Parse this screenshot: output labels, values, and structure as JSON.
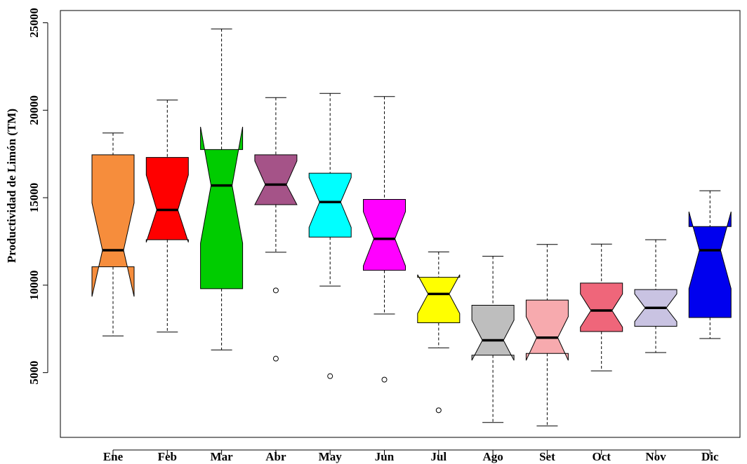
{
  "chart_data": {
    "type": "boxplot",
    "title": "",
    "xlabel": "",
    "ylabel": "Productividad de Limón (TM)",
    "ylim": [
      1300,
      25700
    ],
    "yticks": [
      5000,
      10000,
      15000,
      20000,
      25000
    ],
    "grid": false,
    "notched": true,
    "categories": [
      "Ene",
      "Feb",
      "Mar",
      "Abr",
      "May",
      "Jun",
      "Jul",
      "Ago",
      "Set",
      "Oct",
      "Nov",
      "Dic"
    ],
    "boxes": [
      {
        "name": "Ene",
        "color": "#F68D3C",
        "whisker_low": 7100,
        "q1": 11050,
        "median": 12000,
        "q3": 17450,
        "whisker_high": 18700,
        "notch_low": 9350,
        "notch_high": 14700,
        "outliers": []
      },
      {
        "name": "Feb",
        "color": "#FF0000",
        "whisker_low": 7320,
        "q1": 12600,
        "median": 14300,
        "q3": 17300,
        "whisker_high": 20580,
        "notch_low": 12450,
        "notch_high": 16300,
        "outliers": []
      },
      {
        "name": "Mar",
        "color": "#00CC00",
        "whisker_low": 6300,
        "q1": 9800,
        "median": 15700,
        "q3": 17750,
        "whisker_high": 24650,
        "notch_low": 12400,
        "notch_high": 19050,
        "outliers": []
      },
      {
        "name": "Abr",
        "color": "#A55388",
        "whisker_low": 11880,
        "q1": 14600,
        "median": 15750,
        "q3": 17450,
        "whisker_high": 20720,
        "notch_low": 14600,
        "notch_high": 17100,
        "outliers": [
          9700,
          5800
        ]
      },
      {
        "name": "May",
        "color": "#00FFFF",
        "whisker_low": 9950,
        "q1": 12750,
        "median": 14750,
        "q3": 16400,
        "whisker_high": 20960,
        "notch_low": 13300,
        "notch_high": 16150,
        "outliers": [
          4800
        ]
      },
      {
        "name": "Jun",
        "color": "#FF00FF",
        "whisker_low": 8350,
        "q1": 10850,
        "median": 12650,
        "q3": 14900,
        "whisker_high": 20780,
        "notch_low": 11100,
        "notch_high": 14200,
        "outliers": [
          4600
        ]
      },
      {
        "name": "Jul",
        "color": "#FFFF00",
        "whisker_low": 6420,
        "q1": 7850,
        "median": 9500,
        "q3": 10450,
        "whisker_high": 11900,
        "notch_low": 8380,
        "notch_high": 10600,
        "outliers": [
          2850
        ]
      },
      {
        "name": "Ago",
        "color": "#BEBEBE",
        "whisker_low": 2150,
        "q1": 6000,
        "median": 6850,
        "q3": 8850,
        "whisker_high": 11650,
        "notch_low": 5700,
        "notch_high": 8000,
        "outliers": []
      },
      {
        "name": "Set",
        "color": "#F7AAAE",
        "whisker_low": 1950,
        "q1": 6100,
        "median": 7000,
        "q3": 9150,
        "whisker_high": 12330,
        "notch_low": 5700,
        "notch_high": 8200,
        "outliers": []
      },
      {
        "name": "Oct",
        "color": "#EF667A",
        "whisker_low": 5100,
        "q1": 7350,
        "median": 8550,
        "q3": 10120,
        "whisker_high": 12350,
        "notch_low": 7600,
        "notch_high": 9500,
        "outliers": []
      },
      {
        "name": "Nov",
        "color": "#C9C3E2",
        "whisker_low": 6150,
        "q1": 7650,
        "median": 8700,
        "q3": 9750,
        "whisker_high": 12600,
        "notch_low": 7920,
        "notch_high": 9500,
        "outliers": []
      },
      {
        "name": "Dic",
        "color": "#0000EE",
        "whisker_low": 6950,
        "q1": 8150,
        "median": 12000,
        "q3": 13350,
        "whisker_high": 15400,
        "notch_low": 9800,
        "notch_high": 14200,
        "outliers": []
      }
    ]
  }
}
